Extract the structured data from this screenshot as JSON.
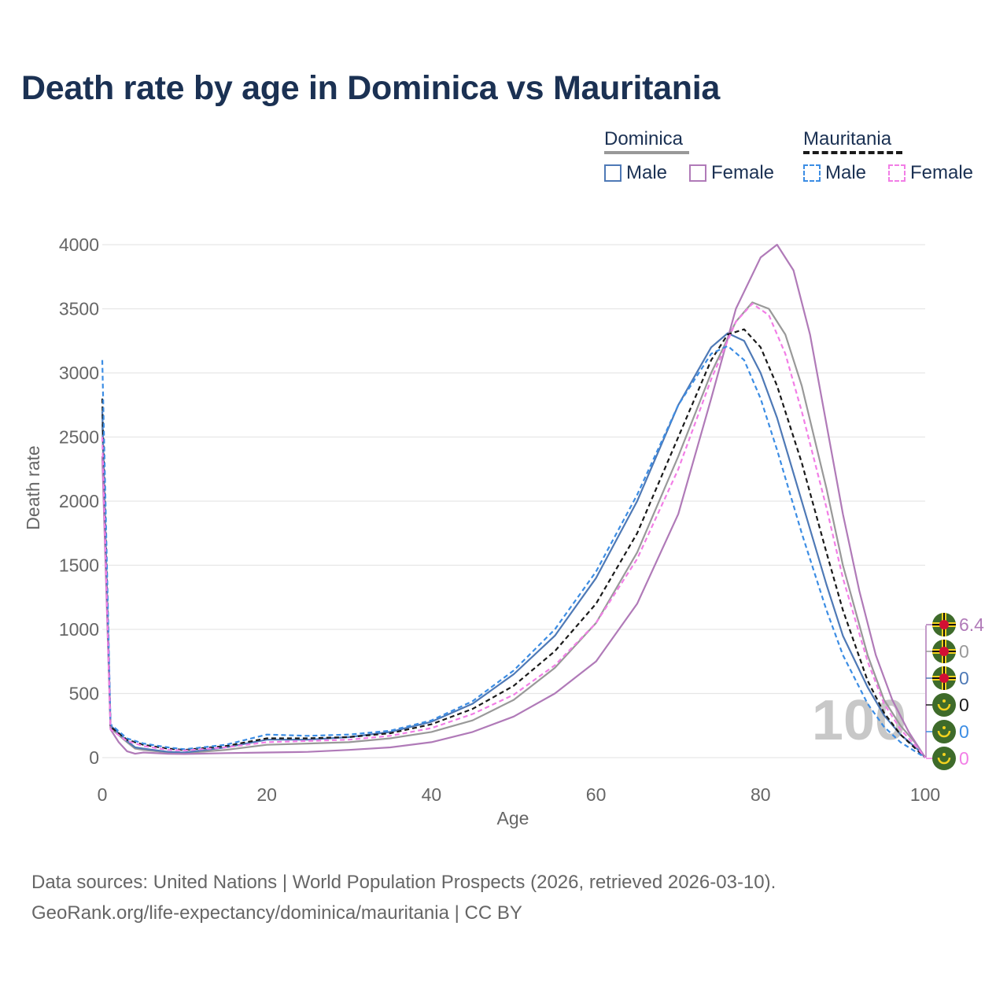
{
  "title": "Death rate by age in Dominica vs Mauritania",
  "legend": {
    "groups": [
      {
        "title": "Dominica",
        "underline_color": "#999999",
        "dashed": false,
        "items": [
          {
            "label": "Male",
            "color": "#4e79b6"
          },
          {
            "label": "Female",
            "color": "#b07ab8"
          }
        ]
      },
      {
        "title": "Mauritania",
        "underline_color": "#1a1a1a",
        "dashed": true,
        "items": [
          {
            "label": "Male",
            "color": "#3c8de4"
          },
          {
            "label": "Female",
            "color": "#f27ee6"
          }
        ]
      }
    ]
  },
  "chart_data": {
    "type": "line",
    "xlabel": "Age",
    "ylabel": "Death rate",
    "xlim": [
      0,
      100
    ],
    "ylim": [
      0,
      4000
    ],
    "xticks": [
      0,
      20,
      40,
      60,
      80,
      100
    ],
    "yticks": [
      0,
      500,
      1000,
      1500,
      2000,
      2500,
      3000,
      3500,
      4000
    ],
    "grid": true,
    "watermark_year": "100",
    "series": [
      {
        "name": "Dominica Total",
        "color": "#999999",
        "dash": false,
        "points": [
          [
            0,
            2600
          ],
          [
            1,
            230
          ],
          [
            3,
            120
          ],
          [
            4,
            70
          ],
          [
            5,
            60
          ],
          [
            8,
            40
          ],
          [
            10,
            35
          ],
          [
            15,
            60
          ],
          [
            20,
            100
          ],
          [
            25,
            110
          ],
          [
            30,
            120
          ],
          [
            35,
            150
          ],
          [
            40,
            200
          ],
          [
            45,
            290
          ],
          [
            50,
            450
          ],
          [
            55,
            700
          ],
          [
            60,
            1050
          ],
          [
            65,
            1600
          ],
          [
            70,
            2350
          ],
          [
            74,
            3000
          ],
          [
            77,
            3400
          ],
          [
            79,
            3550
          ],
          [
            81,
            3500
          ],
          [
            83,
            3300
          ],
          [
            85,
            2900
          ],
          [
            88,
            2100
          ],
          [
            90,
            1500
          ],
          [
            93,
            800
          ],
          [
            95,
            450
          ],
          [
            97,
            250
          ],
          [
            99,
            100
          ],
          [
            100,
            0
          ]
        ]
      },
      {
        "name": "Dominica Male",
        "color": "#4e79b6",
        "dash": false,
        "points": [
          [
            0,
            2700
          ],
          [
            1,
            250
          ],
          [
            3,
            130
          ],
          [
            4,
            80
          ],
          [
            5,
            70
          ],
          [
            8,
            45
          ],
          [
            10,
            40
          ],
          [
            15,
            80
          ],
          [
            20,
            140
          ],
          [
            25,
            140
          ],
          [
            30,
            160
          ],
          [
            35,
            200
          ],
          [
            40,
            280
          ],
          [
            45,
            420
          ],
          [
            50,
            650
          ],
          [
            55,
            950
          ],
          [
            60,
            1400
          ],
          [
            65,
            2000
          ],
          [
            70,
            2750
          ],
          [
            74,
            3200
          ],
          [
            76,
            3310
          ],
          [
            78,
            3250
          ],
          [
            80,
            3000
          ],
          [
            82,
            2650
          ],
          [
            85,
            2000
          ],
          [
            88,
            1350
          ],
          [
            90,
            950
          ],
          [
            93,
            550
          ],
          [
            95,
            330
          ],
          [
            97,
            180
          ],
          [
            99,
            70
          ],
          [
            100,
            0
          ]
        ]
      },
      {
        "name": "Dominica Female",
        "color": "#b07ab8",
        "dash": false,
        "points": [
          [
            0,
            2350
          ],
          [
            1,
            220
          ],
          [
            2,
            120
          ],
          [
            3,
            50
          ],
          [
            4,
            30
          ],
          [
            5,
            40
          ],
          [
            8,
            30
          ],
          [
            10,
            28
          ],
          [
            15,
            35
          ],
          [
            20,
            40
          ],
          [
            25,
            45
          ],
          [
            30,
            60
          ],
          [
            35,
            80
          ],
          [
            40,
            120
          ],
          [
            45,
            200
          ],
          [
            50,
            320
          ],
          [
            55,
            500
          ],
          [
            60,
            750
          ],
          [
            65,
            1200
          ],
          [
            70,
            1900
          ],
          [
            74,
            2800
          ],
          [
            77,
            3500
          ],
          [
            80,
            3900
          ],
          [
            82,
            4000
          ],
          [
            84,
            3800
          ],
          [
            86,
            3300
          ],
          [
            88,
            2600
          ],
          [
            90,
            1900
          ],
          [
            92,
            1300
          ],
          [
            94,
            800
          ],
          [
            96,
            450
          ],
          [
            98,
            200
          ],
          [
            100,
            0
          ]
        ]
      },
      {
        "name": "Mauritania Total",
        "color": "#1a1a1a",
        "dash": true,
        "points": [
          [
            0,
            2800
          ],
          [
            1,
            240
          ],
          [
            3,
            140
          ],
          [
            5,
            100
          ],
          [
            8,
            70
          ],
          [
            10,
            60
          ],
          [
            15,
            90
          ],
          [
            20,
            150
          ],
          [
            25,
            150
          ],
          [
            30,
            160
          ],
          [
            35,
            190
          ],
          [
            40,
            260
          ],
          [
            45,
            380
          ],
          [
            50,
            560
          ],
          [
            55,
            830
          ],
          [
            60,
            1200
          ],
          [
            65,
            1750
          ],
          [
            70,
            2500
          ],
          [
            74,
            3100
          ],
          [
            76,
            3300
          ],
          [
            78,
            3340
          ],
          [
            80,
            3200
          ],
          [
            82,
            2900
          ],
          [
            85,
            2300
          ],
          [
            88,
            1600
          ],
          [
            90,
            1150
          ],
          [
            93,
            600
          ],
          [
            95,
            350
          ],
          [
            97,
            180
          ],
          [
            99,
            60
          ],
          [
            100,
            0
          ]
        ]
      },
      {
        "name": "Mauritania Male",
        "color": "#3c8de4",
        "dash": true,
        "points": [
          [
            0,
            3100
          ],
          [
            1,
            260
          ],
          [
            3,
            150
          ],
          [
            5,
            110
          ],
          [
            8,
            80
          ],
          [
            10,
            65
          ],
          [
            15,
            100
          ],
          [
            20,
            180
          ],
          [
            25,
            170
          ],
          [
            30,
            180
          ],
          [
            35,
            210
          ],
          [
            40,
            290
          ],
          [
            45,
            440
          ],
          [
            50,
            680
          ],
          [
            55,
            1000
          ],
          [
            60,
            1450
          ],
          [
            65,
            2050
          ],
          [
            70,
            2750
          ],
          [
            74,
            3150
          ],
          [
            76,
            3210
          ],
          [
            78,
            3100
          ],
          [
            80,
            2800
          ],
          [
            82,
            2400
          ],
          [
            85,
            1750
          ],
          [
            88,
            1150
          ],
          [
            90,
            800
          ],
          [
            93,
            420
          ],
          [
            95,
            240
          ],
          [
            97,
            120
          ],
          [
            99,
            40
          ],
          [
            100,
            0
          ]
        ]
      },
      {
        "name": "Mauritania Female",
        "color": "#f27ee6",
        "dash": true,
        "points": [
          [
            0,
            2500
          ],
          [
            1,
            220
          ],
          [
            3,
            130
          ],
          [
            5,
            90
          ],
          [
            8,
            60
          ],
          [
            10,
            55
          ],
          [
            15,
            80
          ],
          [
            20,
            120
          ],
          [
            25,
            130
          ],
          [
            30,
            140
          ],
          [
            35,
            170
          ],
          [
            40,
            230
          ],
          [
            45,
            340
          ],
          [
            50,
            490
          ],
          [
            55,
            720
          ],
          [
            60,
            1050
          ],
          [
            65,
            1550
          ],
          [
            70,
            2250
          ],
          [
            74,
            2950
          ],
          [
            77,
            3400
          ],
          [
            79,
            3540
          ],
          [
            81,
            3450
          ],
          [
            83,
            3150
          ],
          [
            85,
            2700
          ],
          [
            88,
            1950
          ],
          [
            90,
            1400
          ],
          [
            93,
            750
          ],
          [
            95,
            420
          ],
          [
            97,
            220
          ],
          [
            99,
            80
          ],
          [
            100,
            0
          ]
        ]
      }
    ],
    "end_labels": [
      {
        "value": "6.4",
        "color": "#b07ab8",
        "flag": "dominica"
      },
      {
        "value": "0",
        "color": "#999999",
        "flag": "dominica"
      },
      {
        "value": "0",
        "color": "#4e79b6",
        "flag": "dominica"
      },
      {
        "value": "0",
        "color": "#1a1a1a",
        "flag": "mauritania"
      },
      {
        "value": "0",
        "color": "#3c8de4",
        "flag": "mauritania"
      },
      {
        "value": "0",
        "color": "#f27ee6",
        "flag": "mauritania"
      }
    ]
  },
  "source": {
    "line1": "Data sources: United Nations | World Population Prospects (2026, retrieved 2026-03-10).",
    "line2": "GeoRank.org/life-expectancy/dominica/mauritania | CC BY"
  }
}
